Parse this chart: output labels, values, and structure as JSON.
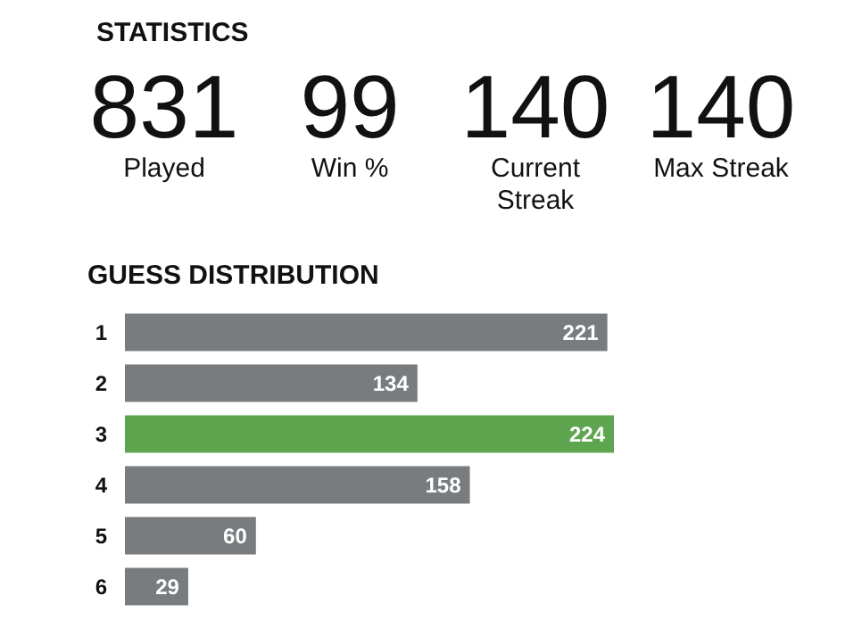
{
  "chart_data": [
    {
      "type": "other",
      "title": "STATISTICS",
      "annotations": [
        "831",
        "Played",
        "99",
        "Win %",
        "140",
        "Current Streak",
        "140",
        "Max Streak"
      ]
    },
    {
      "type": "bar",
      "title": "GUESS DISTRIBUTION",
      "orientation": "horizontal",
      "categories": [
        "1",
        "2",
        "3",
        "4",
        "5",
        "6"
      ],
      "values": [
        221,
        134,
        224,
        158,
        60,
        29
      ],
      "colors": [
        "#787c7e",
        "#787c7e",
        "#5ea54f",
        "#787c7e",
        "#787c7e",
        "#787c7e"
      ],
      "data_labels": true
    }
  ]
}
